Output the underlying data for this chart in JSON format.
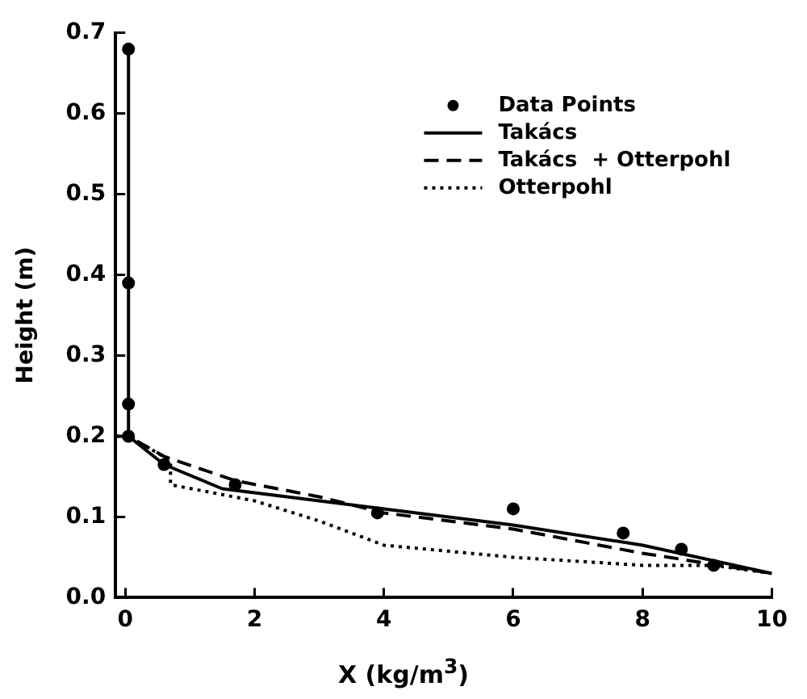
{
  "chart_data": {
    "type": "line",
    "xlabel": "X (kg/m$^{3}$)",
    "ylabel": "Height (m)",
    "xlim": [
      -0.15,
      10
    ],
    "xticks": [
      0,
      2,
      4,
      6,
      8,
      10
    ],
    "ylim": [
      0,
      0.7
    ],
    "yticks": [
      {
        "value": 0,
        "label": "0.0"
      },
      0.1,
      0.2,
      0.3,
      0.4,
      0.5,
      0.6,
      0.7
    ],
    "grid": false,
    "legend": "top right",
    "series": [
      {
        "name": "Data Points",
        "type": "scatter",
        "marker": "circle",
        "color": "#000000",
        "x": [
          0.05,
          0.05,
          0.05,
          0.05,
          0.6,
          1.7,
          3.9,
          6.0,
          7.7,
          8.6,
          9.1
        ],
        "values": [
          0.68,
          0.39,
          0.24,
          0.2,
          0.165,
          0.14,
          0.105,
          0.11,
          0.08,
          0.06,
          0.04
        ]
      },
      {
        "name": "Takács",
        "type": "line",
        "line_style": "solid",
        "color": "#000000",
        "x": [
          0.05,
          0.05,
          0.6,
          1.5,
          4,
          6,
          8,
          10
        ],
        "values": [
          0.68,
          0.2,
          0.165,
          0.135,
          0.11,
          0.09,
          0.065,
          0.03
        ]
      },
      {
        "name": "Takács  + Otterpohl",
        "type": "line",
        "line_style": "dashed",
        "color": "#000000",
        "x": [
          -0.15,
          0.05,
          0.6,
          1.7,
          3,
          4,
          6,
          8,
          10
        ],
        "values": [
          0.2,
          0.2,
          0.175,
          0.145,
          0.125,
          0.105,
          0.085,
          0.055,
          0.03
        ]
      },
      {
        "name": "Otterpohl",
        "type": "line",
        "line_style": "dotted",
        "color": "#000000",
        "x": [
          -0.15,
          0.05,
          0.7,
          0.7,
          2,
          3,
          4,
          6,
          8,
          9.1,
          10
        ],
        "values": [
          0.2,
          0.2,
          0.17,
          0.14,
          0.12,
          0.095,
          0.065,
          0.05,
          0.04,
          0.04,
          0.03
        ]
      }
    ]
  }
}
